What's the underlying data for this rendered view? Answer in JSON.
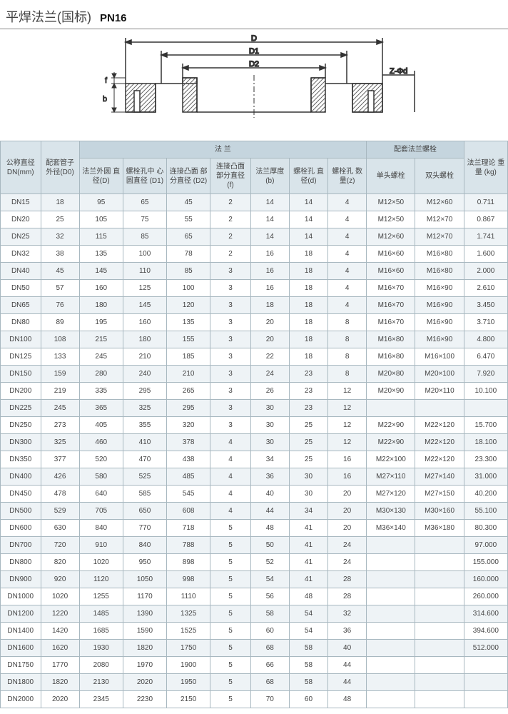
{
  "title_cn": "平焊法兰(国标)",
  "title_pn": "PN16",
  "diagram": {
    "stroke": "#3a3a3a",
    "stroke_width": 2,
    "hatch_fill": "#888",
    "labels": {
      "D": "D",
      "D1": "D1",
      "D2": "D2",
      "Zphid": "Z-Φd",
      "f": "f",
      "b": "b"
    }
  },
  "headers": {
    "dn": "公称直径\nDN(mm)",
    "d0": "配套管子\n外径(D0)",
    "flange_group": "法  兰",
    "D": "法兰外圆\n直径(D)",
    "D1": "螺栓孔中\n心圆直径\n(D1)",
    "D2": "连接凸面\n部分直径\n(D2)",
    "f": "连接凸面\n部分直径\n(f)",
    "b": "法兰厚度\n(b)",
    "d": "螺栓孔\n直径(d)",
    "z": "螺栓孔\n数量(z)",
    "bolt_group": "配套法兰螺栓",
    "bolt1": "单头螺栓",
    "bolt2": "双头螺栓",
    "kg": "法兰理论\n重量\n(kg)"
  },
  "rows": [
    [
      "DN15",
      "18",
      "95",
      "65",
      "45",
      "2",
      "14",
      "14",
      "4",
      "M12×50",
      "M12×60",
      "0.711"
    ],
    [
      "DN20",
      "25",
      "105",
      "75",
      "55",
      "2",
      "14",
      "14",
      "4",
      "M12×50",
      "M12×70",
      "0.867"
    ],
    [
      "DN25",
      "32",
      "115",
      "85",
      "65",
      "2",
      "14",
      "14",
      "4",
      "M12×60",
      "M12×70",
      "1.741"
    ],
    [
      "DN32",
      "38",
      "135",
      "100",
      "78",
      "2",
      "16",
      "18",
      "4",
      "M16×60",
      "M16×80",
      "1.600"
    ],
    [
      "DN40",
      "45",
      "145",
      "110",
      "85",
      "3",
      "16",
      "18",
      "4",
      "M16×60",
      "M16×80",
      "2.000"
    ],
    [
      "DN50",
      "57",
      "160",
      "125",
      "100",
      "3",
      "16",
      "18",
      "4",
      "M16×70",
      "M16×90",
      "2.610"
    ],
    [
      "DN65",
      "76",
      "180",
      "145",
      "120",
      "3",
      "18",
      "18",
      "4",
      "M16×70",
      "M16×90",
      "3.450"
    ],
    [
      "DN80",
      "89",
      "195",
      "160",
      "135",
      "3",
      "20",
      "18",
      "8",
      "M16×70",
      "M16×90",
      "3.710"
    ],
    [
      "DN100",
      "108",
      "215",
      "180",
      "155",
      "3",
      "20",
      "18",
      "8",
      "M16×80",
      "M16×90",
      "4.800"
    ],
    [
      "DN125",
      "133",
      "245",
      "210",
      "185",
      "3",
      "22",
      "18",
      "8",
      "M16×80",
      "M16×100",
      "6.470"
    ],
    [
      "DN150",
      "159",
      "280",
      "240",
      "210",
      "3",
      "24",
      "23",
      "8",
      "M20×80",
      "M20×100",
      "7.920"
    ],
    [
      "DN200",
      "219",
      "335",
      "295",
      "265",
      "3",
      "26",
      "23",
      "12",
      "M20×90",
      "M20×110",
      "10.100"
    ],
    [
      "DN225",
      "245",
      "365",
      "325",
      "295",
      "3",
      "30",
      "23",
      "12",
      "",
      "",
      ""
    ],
    [
      "DN250",
      "273",
      "405",
      "355",
      "320",
      "3",
      "30",
      "25",
      "12",
      "M22×90",
      "M22×120",
      "15.700"
    ],
    [
      "DN300",
      "325",
      "460",
      "410",
      "378",
      "4",
      "30",
      "25",
      "12",
      "M22×90",
      "M22×120",
      "18.100"
    ],
    [
      "DN350",
      "377",
      "520",
      "470",
      "438",
      "4",
      "34",
      "25",
      "16",
      "M22×100",
      "M22×120",
      "23.300"
    ],
    [
      "DN400",
      "426",
      "580",
      "525",
      "485",
      "4",
      "36",
      "30",
      "16",
      "M27×110",
      "M27×140",
      "31.000"
    ],
    [
      "DN450",
      "478",
      "640",
      "585",
      "545",
      "4",
      "40",
      "30",
      "20",
      "M27×120",
      "M27×150",
      "40.200"
    ],
    [
      "DN500",
      "529",
      "705",
      "650",
      "608",
      "4",
      "44",
      "34",
      "20",
      "M30×130",
      "M30×160",
      "55.100"
    ],
    [
      "DN600",
      "630",
      "840",
      "770",
      "718",
      "5",
      "48",
      "41",
      "20",
      "M36×140",
      "M36×180",
      "80.300"
    ],
    [
      "DN700",
      "720",
      "910",
      "840",
      "788",
      "5",
      "50",
      "41",
      "24",
      "",
      "",
      "97.000"
    ],
    [
      "DN800",
      "820",
      "1020",
      "950",
      "898",
      "5",
      "52",
      "41",
      "24",
      "",
      "",
      "155.000"
    ],
    [
      "DN900",
      "920",
      "1120",
      "1050",
      "998",
      "5",
      "54",
      "41",
      "28",
      "",
      "",
      "160.000"
    ],
    [
      "DN1000",
      "1020",
      "1255",
      "1170",
      "1110",
      "5",
      "56",
      "48",
      "28",
      "",
      "",
      "260.000"
    ],
    [
      "DN1200",
      "1220",
      "1485",
      "1390",
      "1325",
      "5",
      "58",
      "54",
      "32",
      "",
      "",
      "314.600"
    ],
    [
      "DN1400",
      "1420",
      "1685",
      "1590",
      "1525",
      "5",
      "60",
      "54",
      "36",
      "",
      "",
      "394.600"
    ],
    [
      "DN1600",
      "1620",
      "1930",
      "1820",
      "1750",
      "5",
      "68",
      "58",
      "40",
      "",
      "",
      "512.000"
    ],
    [
      "DN1750",
      "1770",
      "2080",
      "1970",
      "1900",
      "5",
      "66",
      "58",
      "44",
      "",
      "",
      ""
    ],
    [
      "DN1800",
      "1820",
      "2130",
      "2020",
      "1950",
      "5",
      "68",
      "58",
      "44",
      "",
      "",
      ""
    ],
    [
      "DN2000",
      "2020",
      "2345",
      "2230",
      "2150",
      "5",
      "70",
      "60",
      "48",
      "",
      "",
      ""
    ]
  ]
}
